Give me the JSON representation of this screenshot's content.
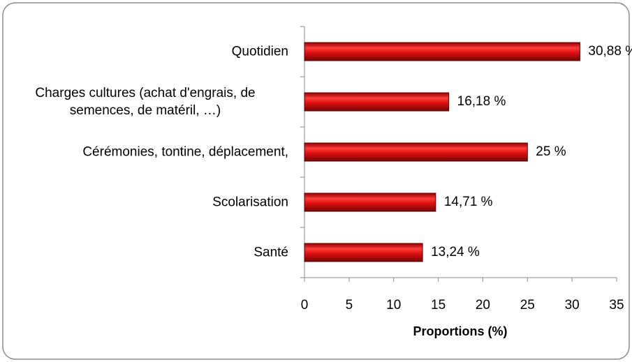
{
  "chart_data": {
    "type": "bar",
    "orientation": "horizontal",
    "categories": [
      "Quotidien",
      "Charges cultures (achat d'engrais, de semences, de matéril, …)",
      "Cérémonies, tontine, déplacement,",
      "Scolarisation",
      "Santé"
    ],
    "values": [
      30.88,
      16.18,
      25,
      14.71,
      13.24
    ],
    "value_labels": [
      "30,88 %",
      "16,18 %",
      "25 %",
      "14,71 %",
      "13,24 %"
    ],
    "color": "#d10f12",
    "xlabel": "Proportions (%)",
    "xlim": [
      0,
      35
    ],
    "xticks": [
      0,
      5,
      10,
      15,
      20,
      25,
      30,
      35
    ],
    "grid": false
  }
}
